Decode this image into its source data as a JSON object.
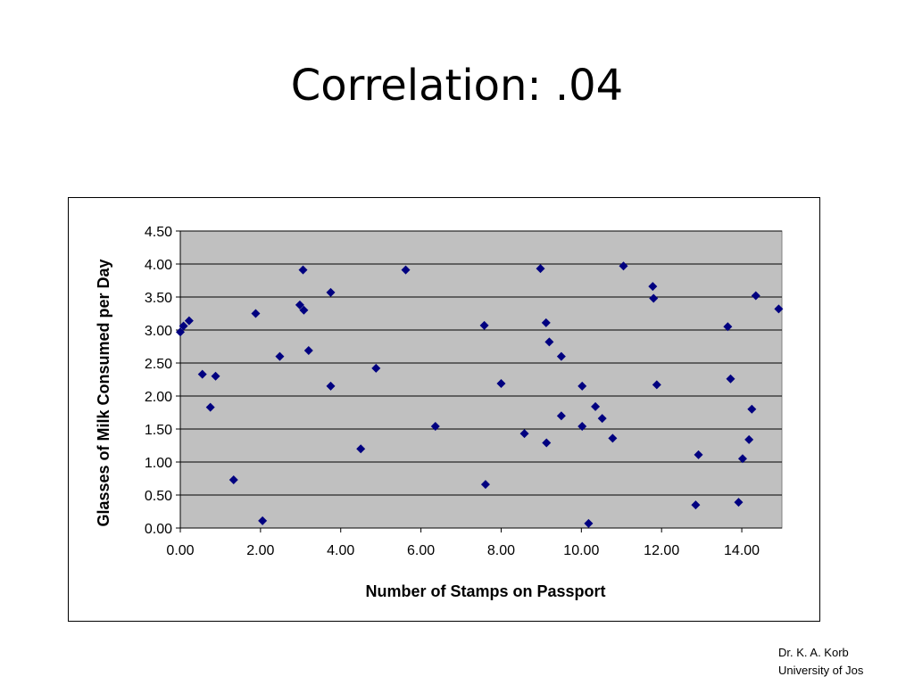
{
  "slide": {
    "title": "Correlation: .04",
    "footer_line1": "Dr. K. A. Korb",
    "footer_line2": "University of Jos"
  },
  "chart_data": {
    "type": "scatter",
    "title": "",
    "xlabel": "Number of Stamps on Passport",
    "ylabel": "Glasses of Milk Consumed per Day",
    "xlim": [
      0,
      15
    ],
    "ylim": [
      0,
      4.5
    ],
    "xticks": [
      "0.00",
      "2.00",
      "4.00",
      "6.00",
      "8.00",
      "10.00",
      "12.00",
      "14.00"
    ],
    "yticks": [
      "0.00",
      "0.50",
      "1.00",
      "1.50",
      "2.00",
      "2.50",
      "3.00",
      "3.50",
      "4.00",
      "4.50"
    ],
    "grid": "horizontal",
    "legend": "none",
    "plot_background": "#c0c0c0",
    "marker_color": "#000080",
    "marker": "diamond",
    "points": [
      {
        "x": 0.0,
        "y": 2.97
      },
      {
        "x": 0.08,
        "y": 3.06
      },
      {
        "x": 0.22,
        "y": 3.14
      },
      {
        "x": 0.55,
        "y": 2.33
      },
      {
        "x": 0.75,
        "y": 1.83
      },
      {
        "x": 0.88,
        "y": 2.3
      },
      {
        "x": 1.33,
        "y": 0.73
      },
      {
        "x": 1.88,
        "y": 3.25
      },
      {
        "x": 2.05,
        "y": 0.11
      },
      {
        "x": 2.48,
        "y": 2.6
      },
      {
        "x": 2.98,
        "y": 3.38
      },
      {
        "x": 3.06,
        "y": 3.91
      },
      {
        "x": 3.08,
        "y": 3.3
      },
      {
        "x": 3.2,
        "y": 2.69
      },
      {
        "x": 3.75,
        "y": 3.57
      },
      {
        "x": 3.75,
        "y": 2.15
      },
      {
        "x": 4.5,
        "y": 1.2
      },
      {
        "x": 4.88,
        "y": 2.42
      },
      {
        "x": 5.62,
        "y": 3.91
      },
      {
        "x": 6.36,
        "y": 1.54
      },
      {
        "x": 7.58,
        "y": 3.07
      },
      {
        "x": 7.61,
        "y": 0.66
      },
      {
        "x": 8.0,
        "y": 2.19
      },
      {
        "x": 8.58,
        "y": 1.43
      },
      {
        "x": 8.98,
        "y": 3.93
      },
      {
        "x": 9.12,
        "y": 3.11
      },
      {
        "x": 9.2,
        "y": 2.82
      },
      {
        "x": 9.13,
        "y": 1.29
      },
      {
        "x": 9.5,
        "y": 2.6
      },
      {
        "x": 9.5,
        "y": 1.7
      },
      {
        "x": 10.02,
        "y": 2.15
      },
      {
        "x": 10.02,
        "y": 1.54
      },
      {
        "x": 10.35,
        "y": 1.84
      },
      {
        "x": 10.52,
        "y": 1.66
      },
      {
        "x": 10.18,
        "y": 0.07
      },
      {
        "x": 10.78,
        "y": 1.36
      },
      {
        "x": 11.05,
        "y": 3.97
      },
      {
        "x": 11.78,
        "y": 3.66
      },
      {
        "x": 11.8,
        "y": 3.48
      },
      {
        "x": 11.88,
        "y": 2.17
      },
      {
        "x": 12.85,
        "y": 0.35
      },
      {
        "x": 12.92,
        "y": 1.11
      },
      {
        "x": 13.65,
        "y": 3.05
      },
      {
        "x": 13.72,
        "y": 2.26
      },
      {
        "x": 13.92,
        "y": 0.39
      },
      {
        "x": 14.02,
        "y": 1.05
      },
      {
        "x": 14.18,
        "y": 1.34
      },
      {
        "x": 14.25,
        "y": 1.8
      },
      {
        "x": 14.35,
        "y": 3.52
      },
      {
        "x": 14.92,
        "y": 3.32
      }
    ]
  }
}
